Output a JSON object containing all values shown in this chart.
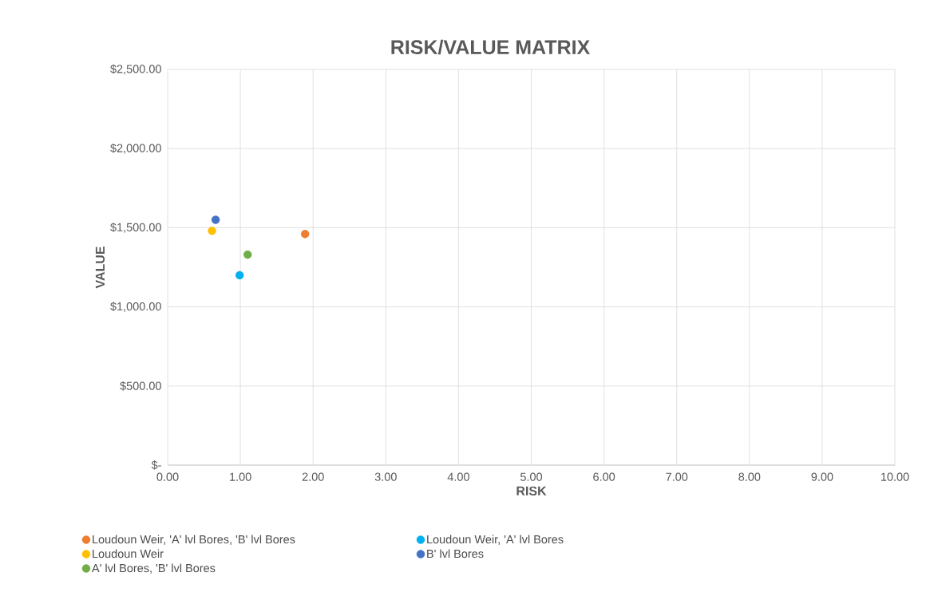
{
  "chart_data": {
    "type": "scatter",
    "title": "RISK/VALUE MATRIX",
    "xlabel": "RISK",
    "ylabel": "VALUE",
    "series": [
      {
        "name": "Loudoun Weir, 'A' lvl Bores, 'B' lvl Bores",
        "color": "#ed7d31",
        "x": [
          1.89
        ],
        "values": [
          1460
        ]
      },
      {
        "name": "Loudoun Weir, 'A' lvl Bores",
        "color": "#00b0f0",
        "x": [
          0.99
        ],
        "values": [
          1200
        ]
      },
      {
        "name": "Loudoun Weir",
        "color": "#ffc000",
        "x": [
          0.61
        ],
        "values": [
          1480
        ]
      },
      {
        "name": "B' lvl Bores",
        "color": "#4472c4",
        "x": [
          0.66
        ],
        "values": [
          1550
        ]
      },
      {
        "name": "A' lvl Bores, 'B' lvl Bores",
        "color": "#70ad47",
        "x": [
          1.1
        ],
        "values": [
          1330
        ]
      }
    ],
    "xlim": [
      0,
      10
    ],
    "xticks": [
      {
        "value": 0,
        "label": "0.00"
      },
      {
        "value": 1,
        "label": "1.00"
      },
      {
        "value": 2,
        "label": "2.00"
      },
      {
        "value": 3,
        "label": "3.00"
      },
      {
        "value": 4,
        "label": "4.00"
      },
      {
        "value": 5,
        "label": "5.00"
      },
      {
        "value": 6,
        "label": "6.00"
      },
      {
        "value": 7,
        "label": "7.00"
      },
      {
        "value": 8,
        "label": "8.00"
      },
      {
        "value": 9,
        "label": "9.00"
      },
      {
        "value": 10,
        "label": "10.00"
      }
    ],
    "ylim": [
      0,
      2500
    ],
    "yticks": [
      {
        "value": 0,
        "label": "$-"
      },
      {
        "value": 500,
        "label": "$500.00"
      },
      {
        "value": 1000,
        "label": "$1,000.00"
      },
      {
        "value": 1500,
        "label": "$1,500.00"
      },
      {
        "value": 2000,
        "label": "$2,000.00"
      },
      {
        "value": 2500,
        "label": "$2,500.00"
      }
    ],
    "grid": true,
    "legend": "bottom",
    "marker": "circle"
  }
}
